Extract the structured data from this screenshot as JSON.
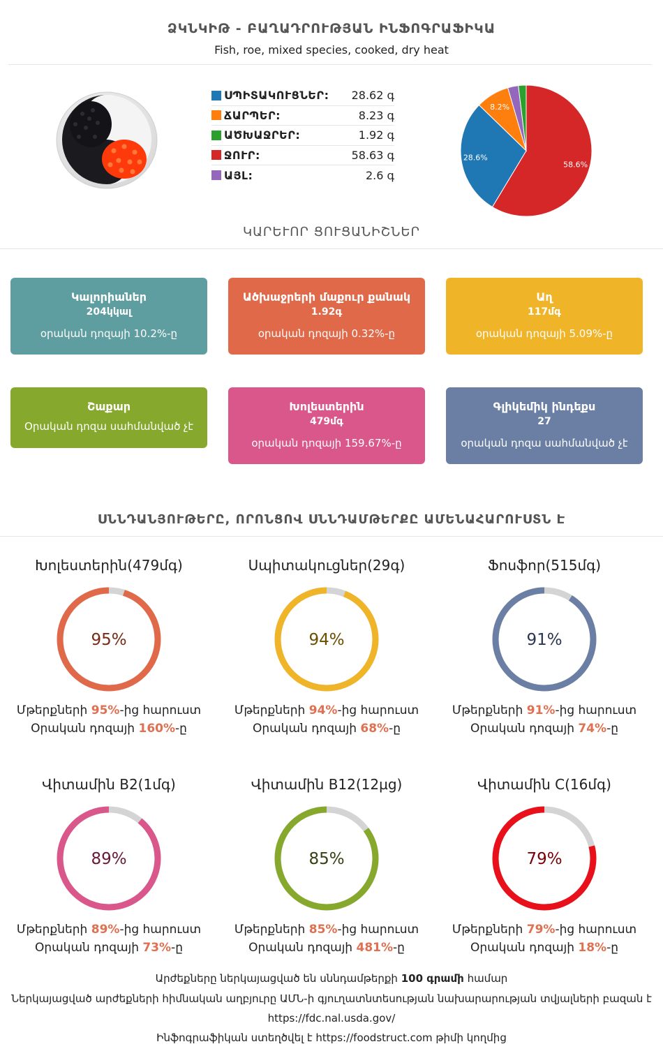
{
  "header": {
    "title": "ՁԿՆԿԻԹ - ԲԱՂԱԴՐՈՒԹՅԱՆ ԻՆՖՈԳՐԱՖԻԿԱ",
    "subtitle": "Fish, roe, mixed species, cooked, dry heat"
  },
  "macros": [
    {
      "name": "ՍՊԻՏԱԿՈՒՑՆԵՐ:",
      "value": "28.62 գ",
      "color": "#1f77b4"
    },
    {
      "name": "ՃԱՐՊԵՐ:",
      "value": "8.23 գ",
      "color": "#ff7f0e"
    },
    {
      "name": "ԱԾԽԱՋՐԵՐ:",
      "value": "1.92 գ",
      "color": "#2ca02c"
    },
    {
      "name": "ՋՈՒՐ:",
      "value": "58.63 գ",
      "color": "#d62728"
    },
    {
      "name": "ԱՅԼ:",
      "value": "2.6 գ",
      "color": "#9467bd"
    }
  ],
  "chart_data": {
    "type": "pie",
    "slices": [
      {
        "name": "ՋՈՒՐ",
        "value": 58.63,
        "label": "58.6%",
        "color": "#d62728"
      },
      {
        "name": "ՍՊԻՏԱԿՈՒՑՆԵՐ",
        "value": 28.62,
        "label": "28.6%",
        "color": "#1f77b4"
      },
      {
        "name": "ՃԱՐՊԵՐ",
        "value": 8.23,
        "label": "8.2%",
        "color": "#ff7f0e"
      },
      {
        "name": "ԱՅԼ",
        "value": 2.6,
        "label": "",
        "color": "#9467bd"
      },
      {
        "name": "ԱԾԽԱՋՐԵՐ",
        "value": 1.92,
        "label": "",
        "color": "#2ca02c"
      }
    ]
  },
  "sections": {
    "key_indicators": "ԿԱՐԵՒՈՐ ՑՈՒՑԱՆԻՇՆԵՐ",
    "rich_nutrients": "ՍՆՆԴԱՆՅՈՒԹԵՐԸ, ՈՐՈՆՑՈՎ ՍՆՆԴԱՄԹԵՐՔԸ ԱՄԵՆԱՀԱՐՈՒՍՏՆ Է"
  },
  "cards": [
    {
      "title": "Կալորիաներ",
      "value": "204կկալ",
      "daily": "օրական դոզայի 10.2%-ը",
      "color": "#5f9ea0"
    },
    {
      "title": "Ածխաջրերի մաքուր քանակ",
      "value": "1.92գ",
      "daily": "օրական դոզայի 0.32%-ը",
      "color": "#e0694a"
    },
    {
      "title": "Աղ",
      "value": "117մգ",
      "daily": "օրական դոզայի 5.09%-ը",
      "color": "#f0b429"
    },
    {
      "title": "Շաքար",
      "value": "",
      "daily": "Օրական դոզա սահմանված չէ",
      "color": "#86a82d"
    },
    {
      "title": "Խոլեստերին",
      "value": "479մգ",
      "daily": "օրական դոզայի 159.67%-ը",
      "color": "#d9578a"
    },
    {
      "title": "Գլիկեմիկ ինդեքս",
      "value": "27",
      "daily": "օրական դոզա սահմանված չէ",
      "color": "#6a7fa3"
    }
  ],
  "rings": [
    {
      "title": "Խոլեստերին(479մգ)",
      "percent": 95,
      "percent_label": "95%",
      "line1_pre": "Մթերքների ",
      "line1_val": "95%",
      "line1_post": "-ից հարուստ",
      "line2_pre": "Օրական դոզայի ",
      "line2_val": "160%",
      "line2_post": "-ը",
      "color": "#e0694a",
      "text_color": "#7a2a14"
    },
    {
      "title": "Սպիտակուցներ(29գ)",
      "percent": 94,
      "percent_label": "94%",
      "line1_pre": "Մթերքների ",
      "line1_val": "94%",
      "line1_post": "-ից հարուստ",
      "line2_pre": "Օրական դոզայի ",
      "line2_val": "68%",
      "line2_post": "-ը",
      "color": "#f0b429",
      "text_color": "#6b4e00"
    },
    {
      "title": "Ֆոսֆոր(515մգ)",
      "percent": 91,
      "percent_label": "91%",
      "line1_pre": "Մթերքների ",
      "line1_val": "91%",
      "line1_post": "-ից հարուստ",
      "line2_pre": "Օրական դոզայի ",
      "line2_val": "74%",
      "line2_post": "-ը",
      "color": "#6a7fa3",
      "text_color": "#2a3550"
    },
    {
      "title": "Վիտամին B2(1մգ)",
      "percent": 89,
      "percent_label": "89%",
      "line1_pre": "Մթերքների ",
      "line1_val": "89%",
      "line1_post": "-ից հարուստ",
      "line2_pre": "Օրական դոզայի ",
      "line2_val": "73%",
      "line2_post": "-ը",
      "color": "#d9578a",
      "text_color": "#6a1838"
    },
    {
      "title": "Վիտամին B12(12µg)",
      "percent": 85,
      "percent_label": "85%",
      "line1_pre": "Մթերքների ",
      "line1_val": "85%",
      "line1_post": "-ից հարուստ",
      "line2_pre": "Օրական դոզայի ",
      "line2_val": "481%",
      "line2_post": "-ը",
      "color": "#86a82d",
      "text_color": "#334010"
    },
    {
      "title": "Վիտամին C(16մգ)",
      "percent": 79,
      "percent_label": "79%",
      "line1_pre": "Մթերքների ",
      "line1_val": "79%",
      "line1_post": "-ից հարուստ",
      "line2_pre": "Օրական դոզայի ",
      "line2_val": "18%",
      "line2_post": "-ը",
      "color": "#e8101a",
      "text_color": "#7a0008"
    }
  ],
  "footer": {
    "line1_pre": "Արժեքները ներկայացված են սննդամթերքի ",
    "line1_bold": "100 գրամի",
    "line1_post": " համար",
    "line2": "Ներկայացված արժեքների հիմնական աղբյուրը ԱՄՆ-ի գյուղատնտեսության նախարարության տվյալների բազան է",
    "line3": "https://fdc.nal.usda.gov/",
    "line4_pre": "Ինֆոգրաֆիկան ստեղծվել է ",
    "line4_link": "https://foodstruct.com",
    "line4_post": " թիմի կողմից"
  }
}
